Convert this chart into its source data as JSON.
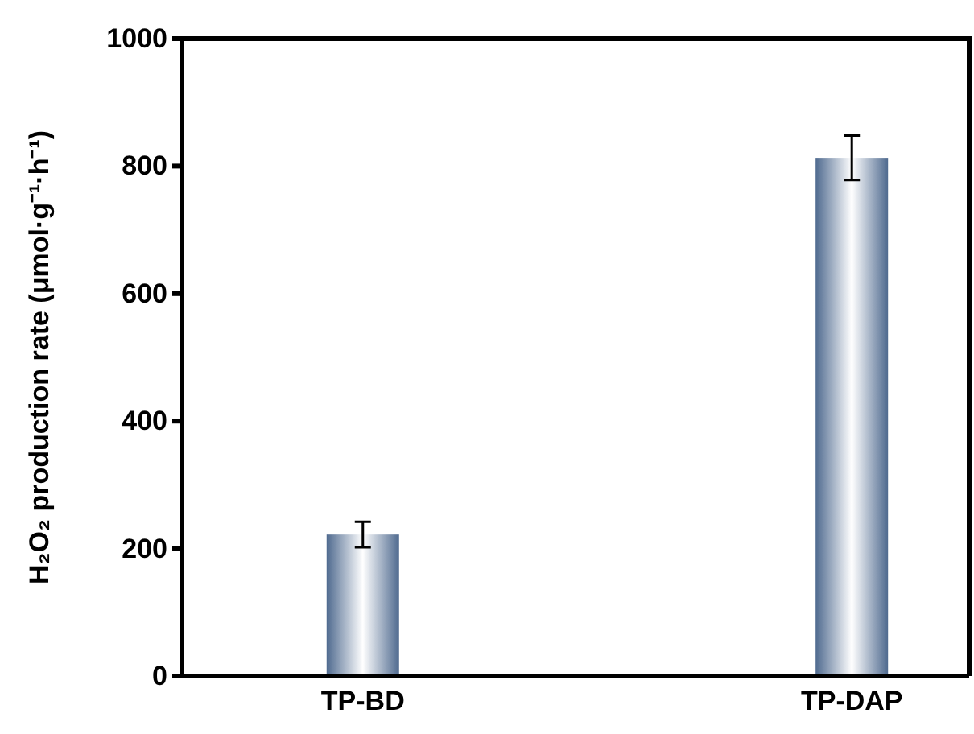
{
  "chart_data": {
    "type": "bar",
    "ylabel": "H₂O₂ production rate (μmol·g⁻¹·h⁻¹)",
    "categories": [
      "TP-BD",
      "TP-DAP"
    ],
    "values": [
      222,
      813
    ],
    "errors": [
      20,
      35
    ],
    "color": "#4f6a8f",
    "ylim": [
      0,
      1000
    ],
    "yticks": [
      0,
      200,
      400,
      600,
      800,
      1000
    ],
    "grid": false
  }
}
